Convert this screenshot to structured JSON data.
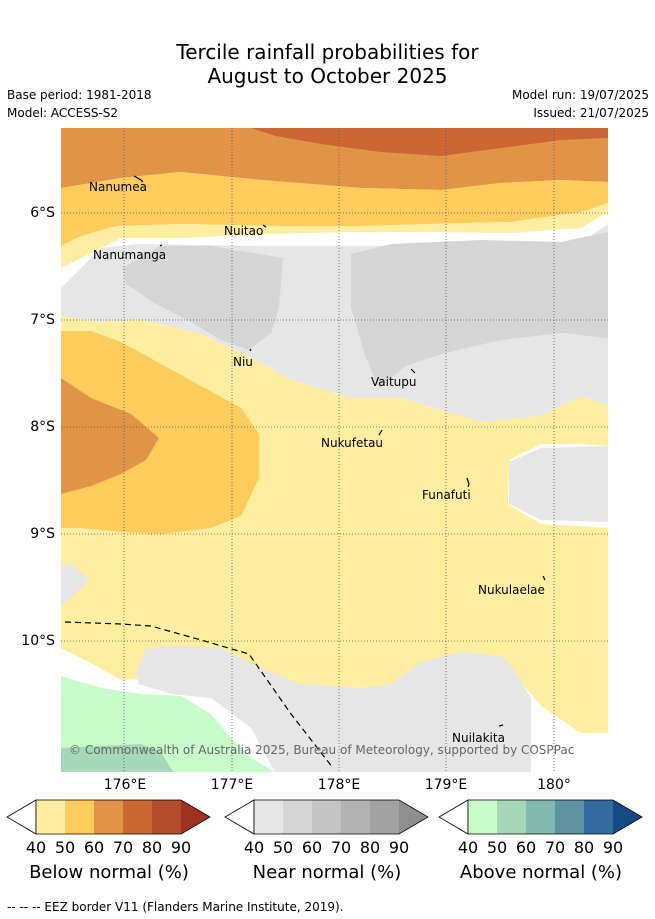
{
  "title_line1": "Tercile rainfall probabilities for",
  "title_line2": "August to October 2025",
  "base_period": "Base period: 1981-2018",
  "model": "Model: ACCESS-S2",
  "model_run": "Model run: 19/07/2025",
  "issued": "Issued: 21/07/2025",
  "copyright": "© Commonwealth of Australia 2025, Bureau of Meteorology, supported by COSPPac",
  "lat_labels": [
    "6°S",
    "7°S",
    "8°S",
    "9°S",
    "10°S"
  ],
  "lon_labels": [
    "176°E",
    "177°E",
    "178°E",
    "179°E",
    "180°"
  ],
  "places": [
    {
      "name": "Nanumea"
    },
    {
      "name": "Nuitao"
    },
    {
      "name": "Nanumanga"
    },
    {
      "name": "Niu"
    },
    {
      "name": "Vaitupu"
    },
    {
      "name": "Nukufetau"
    },
    {
      "name": "Funafuti"
    },
    {
      "name": "Nukulaelae"
    },
    {
      "name": "Nuilakita"
    }
  ],
  "colorbars": [
    {
      "label": "Below normal (%)",
      "ticks": [
        "40",
        "50",
        "60",
        "70",
        "80",
        "90"
      ],
      "colors": [
        "#ffeda0",
        "#fecc5c",
        "#e29446",
        "#cc6633",
        "#b24e2b",
        "#9e3322"
      ]
    },
    {
      "label": "Near normal (%)",
      "ticks": [
        "40",
        "50",
        "60",
        "70",
        "80",
        "90"
      ],
      "colors": [
        "#e6e6e6",
        "#d5d5d5",
        "#c4c4c4",
        "#b3b3b3",
        "#a2a2a2",
        "#8f8f8f"
      ]
    },
    {
      "label": "Above normal (%)",
      "ticks": [
        "40",
        "50",
        "60",
        "70",
        "80",
        "90"
      ],
      "colors": [
        "#c7fcca",
        "#a5d8b8",
        "#84b9b0",
        "#5e94a0",
        "#346a9d",
        "#134b87"
      ]
    }
  ],
  "footer": "--  --  -- EEZ border V11 (Flanders Marine Institute, 2019)."
}
